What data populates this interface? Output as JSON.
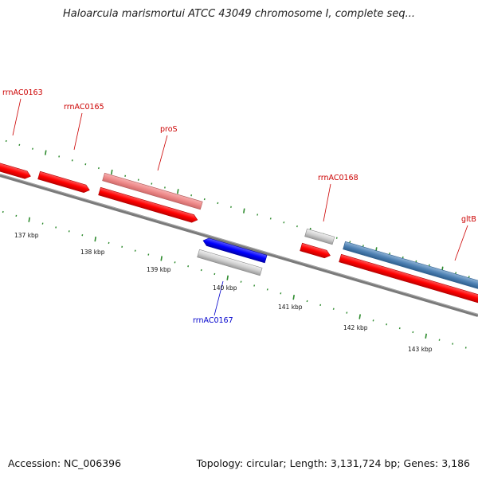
{
  "title": "Haloarcula marismortui ATCC 43049 chromosome I, complete seq...",
  "footer": {
    "accession": "Accession: NC_006396",
    "info": "Topology: circular; Length: 3,131,724 bp; Genes: 3,186"
  },
  "colors": {
    "backbone": "#7a7a7a",
    "tick": "#2e8b2e",
    "label_red": "#cc0000",
    "label_blue": "#0000cc"
  },
  "map": {
    "scale_ticks": [
      {
        "label": "137 kbp"
      },
      {
        "label": "138 kbp"
      },
      {
        "label": "139 kbp"
      },
      {
        "label": "140 kbp"
      },
      {
        "label": "141 kbp"
      },
      {
        "label": "142 kbp"
      },
      {
        "label": "143 kbp"
      }
    ],
    "genes": [
      {
        "label": "rrnAC0163",
        "label_color": "red",
        "color": "red"
      },
      {
        "label": "rrnAC0165",
        "label_color": "red",
        "color": "red"
      },
      {
        "label": "proS",
        "label_color": "red",
        "color": "pink"
      },
      {
        "label": "rrnAC0168",
        "label_color": "red",
        "color": "gray"
      },
      {
        "label": "gltB",
        "label_color": "red",
        "color": "steelblue"
      },
      {
        "label": "rrnAC0167",
        "label_color": "blue",
        "color": "blue"
      }
    ]
  }
}
